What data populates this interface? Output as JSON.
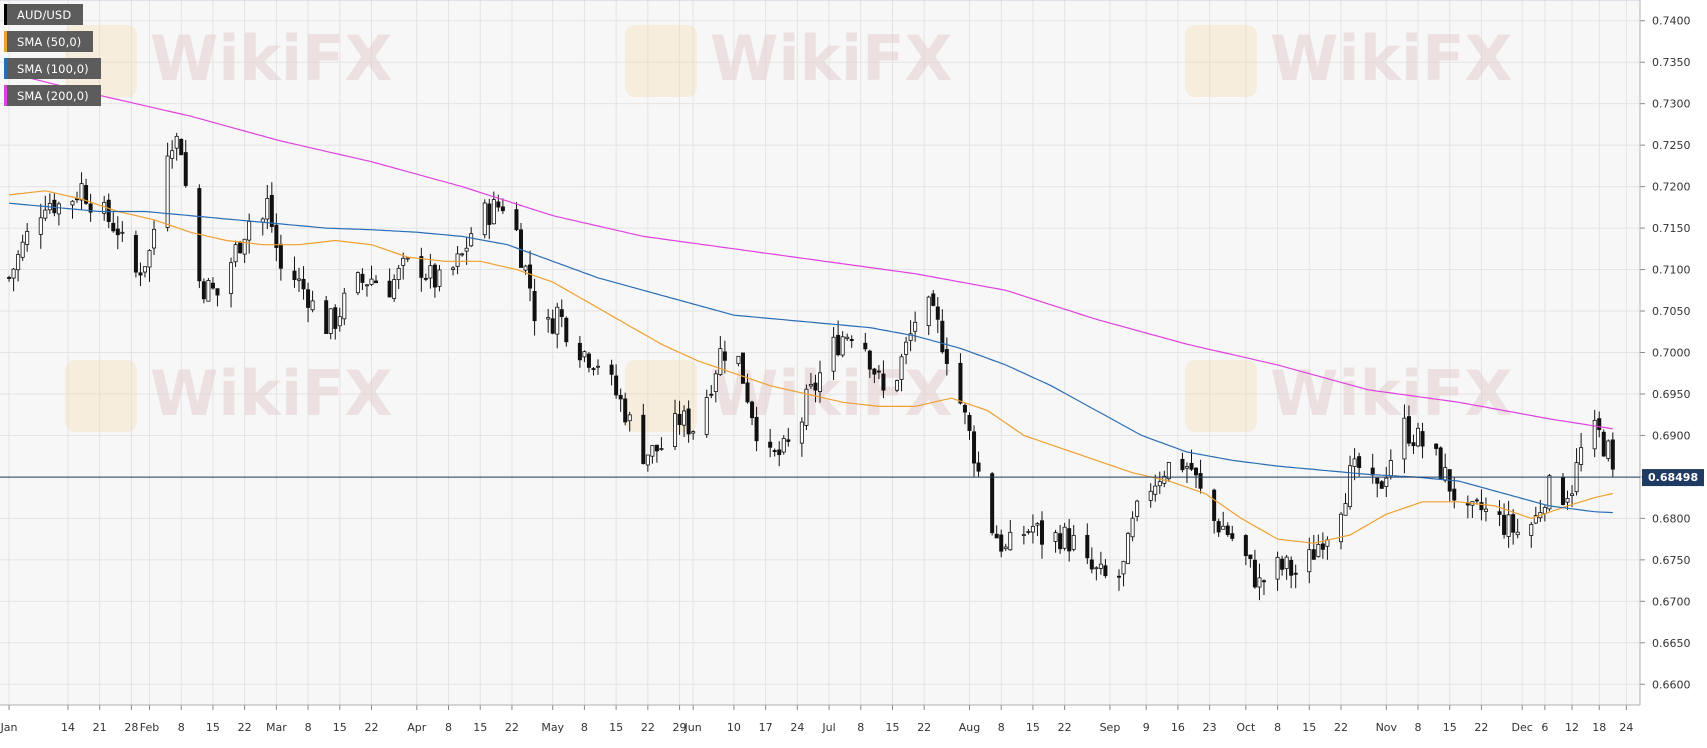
{
  "chart_data": {
    "type": "candlestick",
    "symbol": "AUD/USD",
    "legend": [
      {
        "label": "AUD/USD",
        "color": "#000000"
      },
      {
        "label": "SMA (50,0)",
        "color": "#f0a030"
      },
      {
        "label": "SMA (100,0)",
        "color": "#2a6db5"
      },
      {
        "label": "SMA (200,0)",
        "color": "#e040e0"
      }
    ],
    "legend_position": "top-left",
    "y_axis_position": "right",
    "ylim": [
      0.6575,
      0.7425
    ],
    "y_ticks": [
      "0.7400",
      "0.7350",
      "0.7300",
      "0.7250",
      "0.7200",
      "0.7150",
      "0.7100",
      "0.7050",
      "0.7000",
      "0.6950",
      "0.6900",
      "0.6850",
      "0.6800",
      "0.6750",
      "0.6700",
      "0.6650",
      "0.6600"
    ],
    "x_ticks": [
      {
        "label": "Jan",
        "day": 0
      },
      {
        "label": "14",
        "day": 13
      },
      {
        "label": "21",
        "day": 20
      },
      {
        "label": "28",
        "day": 27
      },
      {
        "label": "Feb",
        "day": 31
      },
      {
        "label": "8",
        "day": 38
      },
      {
        "label": "15",
        "day": 45
      },
      {
        "label": "22",
        "day": 52
      },
      {
        "label": "Mar",
        "day": 59
      },
      {
        "label": "8",
        "day": 66
      },
      {
        "label": "15",
        "day": 73
      },
      {
        "label": "22",
        "day": 80
      },
      {
        "label": "Apr",
        "day": 90
      },
      {
        "label": "8",
        "day": 97
      },
      {
        "label": "15",
        "day": 104
      },
      {
        "label": "22",
        "day": 111
      },
      {
        "label": "May",
        "day": 120
      },
      {
        "label": "8",
        "day": 127
      },
      {
        "label": "15",
        "day": 134
      },
      {
        "label": "22",
        "day": 141
      },
      {
        "label": "29",
        "day": 148
      },
      {
        "label": "Jun",
        "day": 151
      },
      {
        "label": "10",
        "day": 160
      },
      {
        "label": "17",
        "day": 167
      },
      {
        "label": "24",
        "day": 174
      },
      {
        "label": "Jul",
        "day": 181
      },
      {
        "label": "8",
        "day": 188
      },
      {
        "label": "15",
        "day": 195
      },
      {
        "label": "22",
        "day": 202
      },
      {
        "label": "Aug",
        "day": 212
      },
      {
        "label": "8",
        "day": 219
      },
      {
        "label": "15",
        "day": 226
      },
      {
        "label": "22",
        "day": 233
      },
      {
        "label": "Sep",
        "day": 243
      },
      {
        "label": "9",
        "day": 251
      },
      {
        "label": "16",
        "day": 258
      },
      {
        "label": "23",
        "day": 265
      },
      {
        "label": "Oct",
        "day": 273
      },
      {
        "label": "8",
        "day": 280
      },
      {
        "label": "15",
        "day": 287
      },
      {
        "label": "22",
        "day": 294
      },
      {
        "label": "Nov",
        "day": 304
      },
      {
        "label": "8",
        "day": 311
      },
      {
        "label": "15",
        "day": 318
      },
      {
        "label": "22",
        "day": 325
      },
      {
        "label": "Dec",
        "day": 334
      },
      {
        "label": "6",
        "day": 339
      },
      {
        "label": "12",
        "day": 345
      },
      {
        "label": "18",
        "day": 351
      },
      {
        "label": "24",
        "day": 357
      }
    ],
    "current_price": 0.68498,
    "current_price_label": "0.68498",
    "price_line_color": "#1f3b63",
    "grid": true,
    "watermark": "WikiFX",
    "close_anchors": [
      [
        0,
        0.709
      ],
      [
        4,
        0.714
      ],
      [
        8,
        0.7185
      ],
      [
        12,
        0.7175
      ],
      [
        16,
        0.72
      ],
      [
        20,
        0.717
      ],
      [
        24,
        0.715
      ],
      [
        26,
        0.711
      ],
      [
        28,
        0.7095
      ],
      [
        31,
        0.712
      ],
      [
        33,
        0.718
      ],
      [
        35,
        0.725
      ],
      [
        36,
        0.726
      ],
      [
        38,
        0.725
      ],
      [
        39,
        0.72
      ],
      [
        40,
        0.71
      ],
      [
        43,
        0.708
      ],
      [
        46,
        0.707
      ],
      [
        49,
        0.711
      ],
      [
        53,
        0.716
      ],
      [
        56,
        0.716
      ],
      [
        57,
        0.718
      ],
      [
        60,
        0.71
      ],
      [
        63,
        0.709
      ],
      [
        66,
        0.707
      ],
      [
        69,
        0.703
      ],
      [
        72,
        0.704
      ],
      [
        76,
        0.708
      ],
      [
        80,
        0.709
      ],
      [
        84,
        0.708
      ],
      [
        87,
        0.71
      ],
      [
        90,
        0.711
      ],
      [
        93,
        0.709
      ],
      [
        96,
        0.708
      ],
      [
        98,
        0.71
      ],
      [
        100,
        0.7115
      ],
      [
        103,
        0.716
      ],
      [
        106,
        0.717
      ],
      [
        109,
        0.718
      ],
      [
        111,
        0.717
      ],
      [
        113,
        0.712
      ],
      [
        115,
        0.708
      ],
      [
        117,
        0.702
      ],
      [
        119,
        0.703
      ],
      [
        121,
        0.705
      ],
      [
        124,
        0.702
      ],
      [
        127,
        0.7
      ],
      [
        130,
        0.699
      ],
      [
        133,
        0.696
      ],
      [
        136,
        0.693
      ],
      [
        138,
        0.69
      ],
      [
        140,
        0.688
      ],
      [
        142,
        0.688
      ],
      [
        145,
        0.689
      ],
      [
        148,
        0.692
      ],
      [
        151,
        0.691
      ],
      [
        154,
        0.695
      ],
      [
        157,
        0.7
      ],
      [
        160,
        0.701
      ],
      [
        162,
        0.697
      ],
      [
        164,
        0.693
      ],
      [
        166,
        0.689
      ],
      [
        168,
        0.687
      ],
      [
        171,
        0.688
      ],
      [
        174,
        0.69
      ],
      [
        176,
        0.694
      ],
      [
        178,
        0.696
      ],
      [
        181,
        0.7
      ],
      [
        184,
        0.702
      ],
      [
        187,
        0.703
      ],
      [
        189,
        0.701
      ],
      [
        191,
        0.698
      ],
      [
        193,
        0.695
      ],
      [
        195,
        0.696
      ],
      [
        197,
        0.699
      ],
      [
        199,
        0.702
      ],
      [
        201,
        0.706
      ],
      [
        203,
        0.705
      ],
      [
        205,
        0.703
      ],
      [
        207,
        0.7
      ],
      [
        209,
        0.696
      ],
      [
        211,
        0.692
      ],
      [
        213,
        0.688
      ],
      [
        215,
        0.683
      ],
      [
        217,
        0.679
      ],
      [
        220,
        0.676
      ],
      [
        223,
        0.678
      ],
      [
        226,
        0.679
      ],
      [
        229,
        0.677
      ],
      [
        232,
        0.678
      ],
      [
        235,
        0.677
      ],
      [
        238,
        0.674
      ],
      [
        241,
        0.673
      ],
      [
        244,
        0.672
      ],
      [
        246,
        0.674
      ],
      [
        248,
        0.679
      ],
      [
        250,
        0.682
      ],
      [
        252,
        0.684
      ],
      [
        255,
        0.686
      ],
      [
        258,
        0.687
      ],
      [
        261,
        0.686
      ],
      [
        263,
        0.683
      ],
      [
        265,
        0.68
      ],
      [
        268,
        0.679
      ],
      [
        271,
        0.677
      ],
      [
        273,
        0.675
      ],
      [
        276,
        0.672
      ],
      [
        279,
        0.674
      ],
      [
        282,
        0.674
      ],
      [
        285,
        0.673
      ],
      [
        288,
        0.676
      ],
      [
        290,
        0.678
      ],
      [
        292,
        0.679
      ],
      [
        294,
        0.682
      ],
      [
        296,
        0.685
      ],
      [
        298,
        0.686
      ],
      [
        300,
        0.684
      ],
      [
        302,
        0.683
      ],
      [
        304,
        0.686
      ],
      [
        306,
        0.689
      ],
      [
        308,
        0.691
      ],
      [
        310,
        0.69
      ],
      [
        312,
        0.689
      ],
      [
        314,
        0.688
      ],
      [
        316,
        0.686
      ],
      [
        318,
        0.684
      ],
      [
        320,
        0.682
      ],
      [
        322,
        0.68
      ],
      [
        325,
        0.681
      ],
      [
        328,
        0.68
      ],
      [
        331,
        0.679
      ],
      [
        334,
        0.678
      ],
      [
        337,
        0.68
      ],
      [
        339,
        0.683
      ],
      [
        341,
        0.684
      ],
      [
        343,
        0.683
      ],
      [
        345,
        0.684
      ],
      [
        347,
        0.688
      ],
      [
        349,
        0.6905
      ],
      [
        351,
        0.69
      ],
      [
        353,
        0.688
      ],
      [
        354,
        0.685
      ]
    ],
    "sma50_anchors": [
      [
        0,
        0.719
      ],
      [
        8,
        0.7195
      ],
      [
        16,
        0.7185
      ],
      [
        24,
        0.717
      ],
      [
        32,
        0.716
      ],
      [
        40,
        0.7145
      ],
      [
        48,
        0.7135
      ],
      [
        56,
        0.713
      ],
      [
        64,
        0.713
      ],
      [
        72,
        0.7135
      ],
      [
        80,
        0.713
      ],
      [
        88,
        0.7115
      ],
      [
        96,
        0.711
      ],
      [
        104,
        0.711
      ],
      [
        112,
        0.71
      ],
      [
        120,
        0.7085
      ],
      [
        128,
        0.706
      ],
      [
        136,
        0.7035
      ],
      [
        144,
        0.701
      ],
      [
        152,
        0.699
      ],
      [
        160,
        0.6975
      ],
      [
        168,
        0.696
      ],
      [
        176,
        0.695
      ],
      [
        184,
        0.694
      ],
      [
        192,
        0.6935
      ],
      [
        200,
        0.6935
      ],
      [
        208,
        0.6945
      ],
      [
        216,
        0.693
      ],
      [
        224,
        0.69
      ],
      [
        232,
        0.6885
      ],
      [
        240,
        0.687
      ],
      [
        248,
        0.6855
      ],
      [
        256,
        0.6845
      ],
      [
        264,
        0.683
      ],
      [
        272,
        0.68
      ],
      [
        280,
        0.6775
      ],
      [
        288,
        0.677
      ],
      [
        296,
        0.678
      ],
      [
        304,
        0.6805
      ],
      [
        312,
        0.682
      ],
      [
        320,
        0.682
      ],
      [
        328,
        0.6815
      ],
      [
        336,
        0.68
      ],
      [
        344,
        0.6815
      ],
      [
        350,
        0.6825
      ],
      [
        354,
        0.683
      ]
    ],
    "sma100_anchors": [
      [
        0,
        0.718
      ],
      [
        10,
        0.7175
      ],
      [
        20,
        0.717
      ],
      [
        30,
        0.717
      ],
      [
        40,
        0.7165
      ],
      [
        50,
        0.716
      ],
      [
        60,
        0.7155
      ],
      [
        70,
        0.715
      ],
      [
        80,
        0.7148
      ],
      [
        90,
        0.7145
      ],
      [
        100,
        0.714
      ],
      [
        110,
        0.713
      ],
      [
        120,
        0.711
      ],
      [
        130,
        0.709
      ],
      [
        140,
        0.7075
      ],
      [
        150,
        0.706
      ],
      [
        160,
        0.7045
      ],
      [
        170,
        0.704
      ],
      [
        180,
        0.7035
      ],
      [
        190,
        0.703
      ],
      [
        200,
        0.702
      ],
      [
        210,
        0.7005
      ],
      [
        220,
        0.6985
      ],
      [
        230,
        0.696
      ],
      [
        240,
        0.693
      ],
      [
        250,
        0.69
      ],
      [
        260,
        0.688
      ],
      [
        270,
        0.687
      ],
      [
        280,
        0.6863
      ],
      [
        290,
        0.6858
      ],
      [
        300,
        0.6853
      ],
      [
        310,
        0.685
      ],
      [
        320,
        0.6845
      ],
      [
        330,
        0.683
      ],
      [
        340,
        0.6815
      ],
      [
        350,
        0.6808
      ],
      [
        354,
        0.6807
      ]
    ],
    "sma200_anchors": [
      [
        0,
        0.7337
      ],
      [
        20,
        0.731
      ],
      [
        40,
        0.7285
      ],
      [
        60,
        0.7255
      ],
      [
        80,
        0.723
      ],
      [
        100,
        0.72
      ],
      [
        120,
        0.7165
      ],
      [
        140,
        0.714
      ],
      [
        160,
        0.7125
      ],
      [
        180,
        0.711
      ],
      [
        200,
        0.7095
      ],
      [
        220,
        0.7075
      ],
      [
        240,
        0.704
      ],
      [
        260,
        0.701
      ],
      [
        280,
        0.6985
      ],
      [
        300,
        0.6955
      ],
      [
        320,
        0.694
      ],
      [
        340,
        0.692
      ],
      [
        354,
        0.6908
      ]
    ]
  }
}
